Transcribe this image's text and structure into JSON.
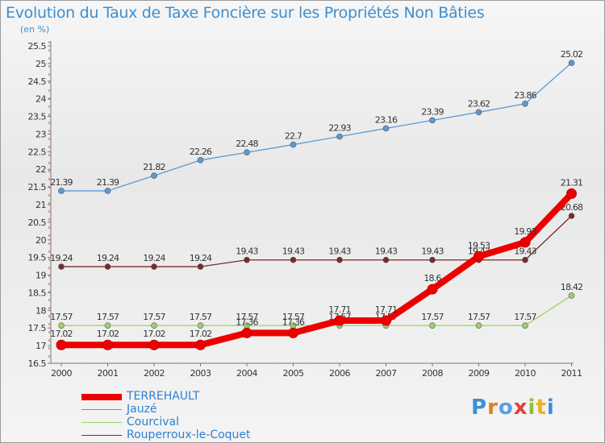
{
  "title": "Evolution du Taux de Taxe Foncière sur les Propriétés Non Bâties",
  "unit_label": "(en %)",
  "logo_text": "Proxiti",
  "chart_data": {
    "type": "line",
    "x": [
      "2000",
      "2001",
      "2002",
      "2003",
      "2004",
      "2005",
      "2006",
      "2007",
      "2008",
      "2009",
      "2010",
      "2011"
    ],
    "ylim": [
      16.5,
      25.5
    ],
    "yticks": [
      "16.5",
      "17",
      "17.5",
      "18",
      "18.5",
      "19",
      "19.5",
      "20",
      "20.5",
      "21",
      "21.5",
      "22",
      "22.5",
      "23",
      "23.5",
      "24",
      "24.5",
      "25",
      "25.5"
    ],
    "grid": false,
    "legend_position": "bottom-left",
    "series": [
      {
        "name": "TERREHAULT",
        "color": "#ee0000",
        "values": [
          17.02,
          17.02,
          17.02,
          17.02,
          17.36,
          17.36,
          17.71,
          17.71,
          18.6,
          19.53,
          19.93,
          21.31
        ],
        "labels": [
          "17.02",
          "17.02",
          "17.02",
          "17.02",
          "17.36",
          "17.36",
          "17.71",
          "17.71",
          "18.6",
          "19.53",
          "19.93",
          "21.31"
        ]
      },
      {
        "name": "Jauzé",
        "color": "#5b9bd5",
        "values": [
          21.39,
          21.39,
          21.82,
          22.26,
          22.48,
          22.7,
          22.93,
          23.16,
          23.39,
          23.62,
          23.86,
          25.02
        ],
        "labels": [
          "21.39",
          "21.39",
          "21.82",
          "22.26",
          "22.48",
          "22.7",
          "22.93",
          "23.16",
          "23.39",
          "23.62",
          "23.86",
          "25.02"
        ]
      },
      {
        "name": "Courcival",
        "color": "#9ad36a",
        "values": [
          17.57,
          17.57,
          17.57,
          17.57,
          17.57,
          17.57,
          17.57,
          17.57,
          17.57,
          17.57,
          17.57,
          18.42
        ],
        "labels": [
          "17.57",
          "17.57",
          "17.57",
          "17.57",
          "17.57",
          "17.57",
          "17.57",
          "17.57",
          "17.57",
          "17.57",
          "17.57",
          "18.42"
        ]
      },
      {
        "name": "Rouperroux-le-Coquet",
        "color": "#7a2a2a",
        "values": [
          19.24,
          19.24,
          19.24,
          19.24,
          19.43,
          19.43,
          19.43,
          19.43,
          19.43,
          19.43,
          19.43,
          20.68
        ],
        "labels": [
          "19.24",
          "19.24",
          "19.24",
          "19.24",
          "19.43",
          "19.43",
          "19.43",
          "19.43",
          "19.43",
          "19.43",
          "19.43",
          "20.68"
        ]
      }
    ]
  }
}
